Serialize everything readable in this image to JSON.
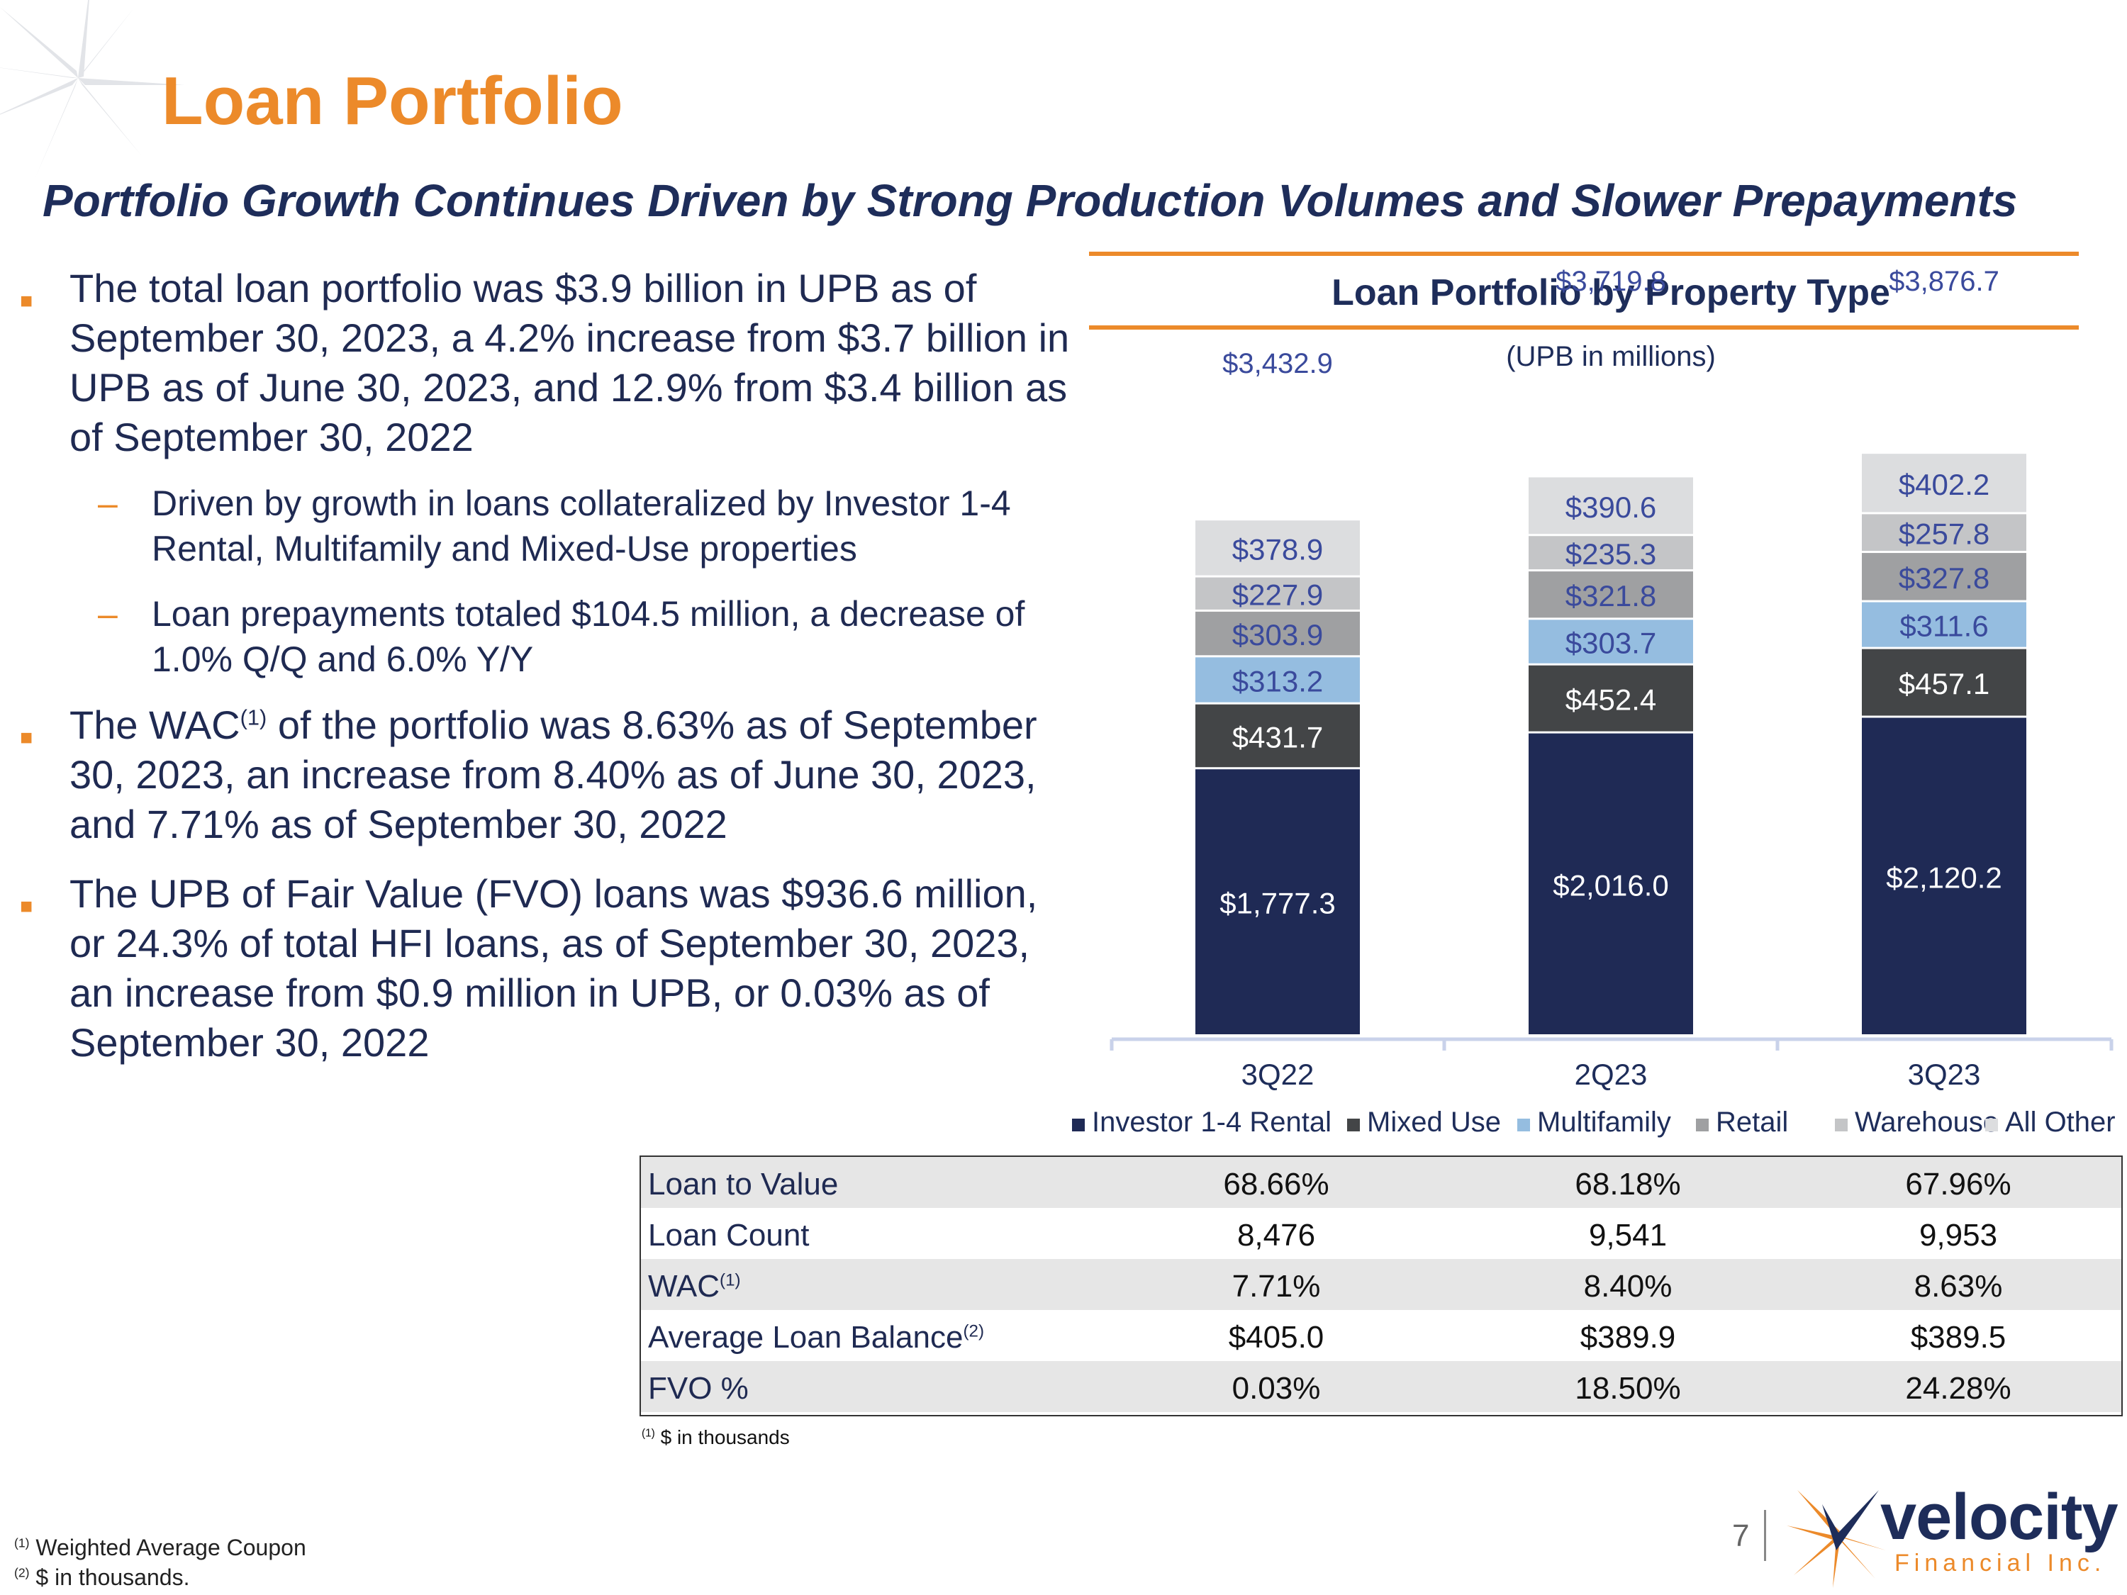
{
  "title": "Loan Portfolio",
  "subtitle": "Portfolio Growth Continues Driven by Strong Production Volumes and Slower Prepayments",
  "bullets": {
    "b1": "The total loan portfolio was $3.9 billion in UPB as of September 30, 2023, a 4.2% increase from $3.7 billion in UPB as of June 30, 2023, and 12.9% from $3.4 billion as of September 30, 2022",
    "b1_sub1": "Driven by growth in loans collateralized by Investor 1-4 Rental, Multifamily and Mixed-Use properties",
    "b1_sub2": "Loan prepayments totaled $104.5 million, a decrease of 1.0% Q/Q and 6.0% Y/Y",
    "b2_pre": "The WAC",
    "b2_sup": "(1)",
    "b2_post": " of the portfolio was 8.63% as of September 30, 2023, an increase from 8.40% as of June 30, 2023, and 7.71% as of September 30, 2022",
    "b3": "The UPB of Fair Value (FVO) loans was $936.6 million, or 24.3% of total HFI loans, as of September 30, 2023, an increase from $0.9 million in UPB, or 0.03% as of September 30, 2022",
    "bullet_symbol": "■",
    "dash_symbol": "–"
  },
  "chart_data": {
    "type": "bar",
    "stacked": true,
    "title": "Loan Portfolio by Property Type",
    "subtitle": "(UPB in millions)",
    "categories": [
      "3Q22",
      "2Q23",
      "3Q23"
    ],
    "series": [
      {
        "name": "Investor 1-4 Rental",
        "color": "#1f2a55",
        "label_color": "#ffffff",
        "values": [
          1777.3,
          2016.0,
          2120.2
        ],
        "labels": [
          "$1,777.3",
          "$2,016.0",
          "$2,120.2"
        ]
      },
      {
        "name": "Mixed Use",
        "color": "#434547",
        "label_color": "#ffffff",
        "values": [
          431.7,
          452.4,
          457.1
        ],
        "labels": [
          "$431.7",
          "$452.4",
          "$457.1"
        ]
      },
      {
        "name": "Multifamily",
        "color": "#95bde0",
        "label_color": "#3a4a9c",
        "values": [
          313.2,
          303.7,
          311.6
        ],
        "labels": [
          "$313.2",
          "$303.7",
          "$311.6"
        ]
      },
      {
        "name": "Retail",
        "color": "#9fa0a2",
        "label_color": "#3a4a9c",
        "values": [
          303.9,
          321.8,
          327.8
        ],
        "labels": [
          "$303.9",
          "$321.8",
          "$327.8"
        ]
      },
      {
        "name": "Warehouse",
        "color": "#c4c5c7",
        "label_color": "#3a4a9c",
        "values": [
          227.9,
          235.3,
          257.8
        ],
        "labels": [
          "$227.9",
          "$235.3",
          "$257.8"
        ]
      },
      {
        "name": "All Other",
        "color": "#dcdddf",
        "label_color": "#3a4a9c",
        "values": [
          378.9,
          390.6,
          402.2
        ],
        "labels": [
          "$378.9",
          "$390.6",
          "$402.2"
        ]
      }
    ],
    "totals": [
      3432.9,
      3719.8,
      3876.7
    ],
    "total_labels": [
      "$3,432.9",
      "$3,719.8",
      "$3,876.7"
    ],
    "ylim": [
      0,
      4500
    ],
    "grid": false,
    "legend_position": "bottom"
  },
  "table": {
    "rows": [
      {
        "label": "Loan to Value",
        "sup": "",
        "values": [
          "68.66%",
          "68.18%",
          "67.96%"
        ]
      },
      {
        "label": "Loan Count",
        "sup": "",
        "values": [
          "8,476",
          "9,541",
          "9,953"
        ]
      },
      {
        "label": "WAC",
        "sup": "(1)",
        "values": [
          "7.71%",
          "8.40%",
          "8.63%"
        ]
      },
      {
        "label": "Average Loan Balance",
        "sup": "(2)",
        "values": [
          "$405.0",
          "$389.9",
          "$389.5"
        ]
      },
      {
        "label": "FVO %",
        "sup": "",
        "values": [
          "0.03%",
          "18.50%",
          "24.28%"
        ]
      }
    ],
    "note_sup": "(1)",
    "note": " $ in thousands"
  },
  "footnotes": {
    "f1_sup": "(1)",
    "f1": " Weighted Average Coupon",
    "f2_sup": "(2)",
    "f2": " $ in thousands."
  },
  "page_number": "7",
  "logo": {
    "word": "velocity",
    "sub": "Financial Inc."
  },
  "colors": {
    "accent": "#ec8a2a",
    "navy": "#1e2d5a",
    "label_blue": "#3a4a9c"
  }
}
